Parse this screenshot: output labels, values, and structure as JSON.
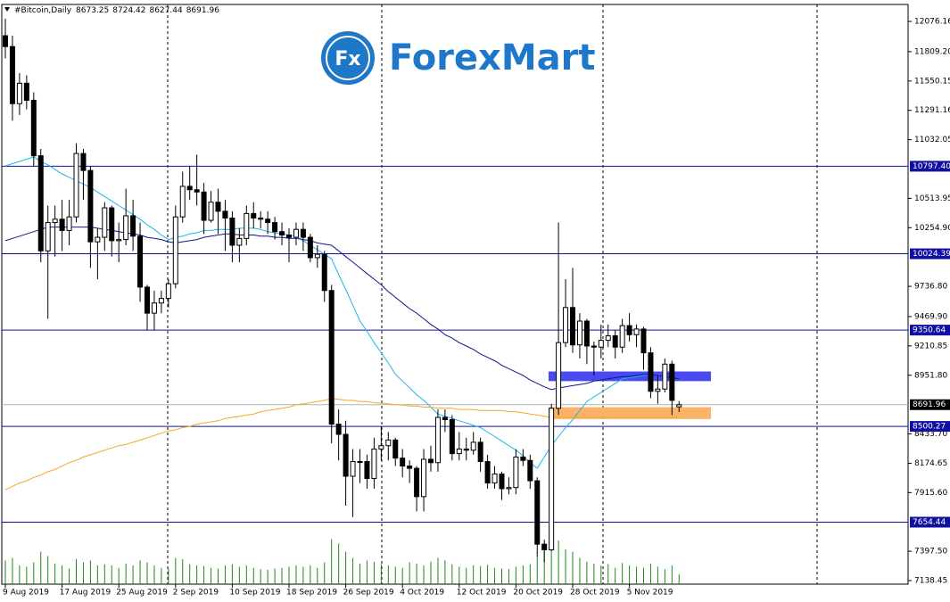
{
  "chart_data": {
    "type": "candlestick",
    "title": "#Bitcoin,Daily",
    "brand": {
      "icon": "Fx",
      "name": "ForexMart"
    },
    "categories": [
      "9 Aug 2019",
      null,
      null,
      null,
      null,
      null,
      null,
      null,
      "17 Aug 2019",
      null,
      null,
      null,
      null,
      null,
      null,
      null,
      "25 Aug 2019",
      null,
      null,
      null,
      null,
      null,
      null,
      null,
      "2 Sep 2019",
      null,
      null,
      null,
      null,
      null,
      null,
      null,
      "10 Sep 2019",
      null,
      null,
      null,
      null,
      null,
      null,
      null,
      "18 Sep 2019",
      null,
      null,
      null,
      null,
      null,
      null,
      null,
      "26 Sep 2019",
      null,
      null,
      null,
      null,
      null,
      null,
      null,
      "4 Oct 2019",
      null,
      null,
      null,
      null,
      null,
      null,
      null,
      "12 Oct 2019",
      null,
      null,
      null,
      null,
      null,
      null,
      null,
      "20 Oct 2019",
      null,
      null,
      null,
      null,
      null,
      null,
      null,
      "28 Oct 2019",
      null,
      null,
      null,
      null,
      null,
      null,
      null,
      "5 Nov 2019",
      null,
      null,
      null,
      null,
      null,
      null,
      null
    ],
    "open": [
      11950,
      11854,
      11350,
      11530,
      11380,
      10890,
      10050,
      10300,
      10330,
      10230,
      10350,
      10910,
      10760,
      10130,
      10170,
      10430,
      10140,
      10150,
      10360,
      10180,
      9730,
      9500,
      9590,
      9630,
      9760,
      10350,
      10620,
      10590,
      10570,
      10320,
      10480,
      10400,
      10340,
      10100,
      10160,
      10380,
      10340,
      10330,
      10300,
      10220,
      10190,
      10170,
      10240,
      10170,
      9990,
      10020,
      9700,
      8520,
      8430,
      8060,
      8190,
      8190,
      8040,
      8300,
      8330,
      8380,
      8220,
      8150,
      8130,
      7880,
      8210,
      8180,
      8580,
      8560,
      8260,
      8300,
      8290,
      8360,
      8190,
      8000,
      8080,
      7950,
      7960,
      8230,
      8200,
      8020,
      7460,
      7410,
      8660,
      9240,
      9550,
      9220,
      9430,
      9210,
      9200,
      9260,
      9300,
      9200,
      9390,
      9310,
      9360,
      9150,
      8810,
      8830,
      9050,
      8673.25
    ],
    "high": [
      12100,
      11950,
      11620,
      11600,
      11450,
      10950,
      10450,
      10450,
      10500,
      10500,
      11000,
      10950,
      10800,
      10250,
      10480,
      10450,
      10300,
      10600,
      10500,
      10300,
      9750,
      9700,
      9700,
      9800,
      10450,
      10750,
      10800,
      10900,
      10650,
      10580,
      10600,
      10500,
      10400,
      10250,
      10450,
      10480,
      10400,
      10400,
      10350,
      10300,
      10250,
      10300,
      10300,
      10200,
      10100,
      10050,
      9750,
      8650,
      8550,
      8300,
      8300,
      8250,
      8400,
      8500,
      8450,
      8400,
      8300,
      8200,
      8150,
      8300,
      8330,
      8650,
      8650,
      8600,
      8450,
      8400,
      8450,
      8400,
      8250,
      8150,
      8100,
      8050,
      8300,
      8300,
      8250,
      8050,
      7500,
      8700,
      10300,
      9800,
      9900,
      9500,
      9450,
      9250,
      9400,
      9400,
      9350,
      9450,
      9500,
      9400,
      9380,
      9200,
      8950,
      9100,
      9080,
      8724.42
    ],
    "low": [
      11750,
      11200,
      11250,
      11300,
      10800,
      9950,
      9450,
      10000,
      10050,
      10100,
      10300,
      10500,
      9900,
      9800,
      10050,
      10000,
      9950,
      10100,
      10050,
      9600,
      9350,
      9350,
      9500,
      9550,
      9720,
      10300,
      10500,
      10450,
      10200,
      10300,
      10200,
      10050,
      9950,
      9950,
      10100,
      10250,
      10250,
      10200,
      10150,
      10100,
      9950,
      10100,
      10050,
      9950,
      9900,
      9600,
      8350,
      8200,
      7800,
      7700,
      8000,
      7950,
      7950,
      8200,
      8200,
      8150,
      8050,
      8000,
      7750,
      7750,
      8100,
      8100,
      8450,
      8200,
      8200,
      8200,
      8250,
      8100,
      7950,
      7950,
      7850,
      7900,
      7900,
      8150,
      7950,
      7350,
      7300,
      7400,
      8600,
      9200,
      9150,
      9100,
      9050,
      8950,
      9100,
      9200,
      9100,
      9150,
      9250,
      9200,
      9000,
      8750,
      8700,
      8800,
      8600,
      8627.44
    ],
    "close": [
      11854,
      11350,
      11530,
      11380,
      10890,
      10050,
      10300,
      10330,
      10230,
      10350,
      10910,
      10760,
      10130,
      10170,
      10430,
      10140,
      10150,
      10360,
      10180,
      9730,
      9500,
      9590,
      9630,
      9760,
      10350,
      10620,
      10590,
      10570,
      10320,
      10480,
      10400,
      10340,
      10100,
      10160,
      10380,
      10340,
      10330,
      10300,
      10220,
      10190,
      10170,
      10240,
      10170,
      9990,
      10020,
      9700,
      8520,
      8430,
      8060,
      8190,
      8190,
      8040,
      8300,
      8330,
      8380,
      8220,
      8150,
      8130,
      7880,
      8210,
      8180,
      8580,
      8560,
      8260,
      8300,
      8290,
      8360,
      8190,
      8000,
      8080,
      7950,
      7960,
      8230,
      8200,
      8020,
      7460,
      7410,
      8660,
      9240,
      9550,
      9220,
      9430,
      9210,
      9200,
      9260,
      9300,
      9200,
      9390,
      9310,
      9360,
      9150,
      8810,
      8830,
      9050,
      8730,
      8691.96
    ],
    "up_color": "#ffffff",
    "down_color": "#000000",
    "outline_color": "#000000",
    "moving_averages": [
      {
        "color": "#1ab6e8",
        "values": [
          10800,
          10820,
          10840,
          10860,
          10880,
          10840,
          10810,
          10770,
          10730,
          10700,
          10670,
          10640,
          10610,
          10570,
          10530,
          10490,
          10450,
          10410,
          10370,
          10330,
          10280,
          10240,
          10190,
          10150,
          10170,
          10180,
          10200,
          10210,
          10230,
          10230,
          10240,
          10240,
          10240,
          10250,
          10250,
          10250,
          10240,
          10220,
          10210,
          10200,
          10190,
          10180,
          10140,
          10100,
          10060,
          10020,
          9980,
          9840,
          9710,
          9570,
          9430,
          9340,
          9240,
          9150,
          9060,
          8960,
          8900,
          8840,
          8780,
          8730,
          8670,
          8610,
          8590,
          8570,
          8550,
          8530,
          8510,
          8490,
          8450,
          8410,
          8370,
          8330,
          8290,
          8240,
          8180,
          8130,
          8230,
          8330,
          8410,
          8490,
          8560,
          8640,
          8720,
          8760,
          8800,
          8840,
          8880,
          8920,
          8930,
          8940,
          8950,
          8960,
          8950,
          8940,
          8930,
          8920
        ]
      },
      {
        "color": "#14148c",
        "values": [
          10140,
          10160,
          10180,
          10200,
          10220,
          10240,
          10260,
          10260,
          10260,
          10260,
          10260,
          10260,
          10260,
          10250,
          10240,
          10230,
          10220,
          10210,
          10200,
          10190,
          10170,
          10160,
          10150,
          10130,
          10120,
          10130,
          10140,
          10150,
          10170,
          10180,
          10190,
          10200,
          10200,
          10190,
          10190,
          10190,
          10180,
          10180,
          10170,
          10170,
          10160,
          10160,
          10150,
          10140,
          10120,
          10110,
          10100,
          10050,
          10000,
          9950,
          9900,
          9850,
          9800,
          9750,
          9690,
          9640,
          9590,
          9540,
          9500,
          9450,
          9400,
          9360,
          9310,
          9280,
          9240,
          9210,
          9180,
          9140,
          9110,
          9080,
          9040,
          9010,
          8980,
          8950,
          8910,
          8880,
          8850,
          8825,
          8840,
          8850,
          8860,
          8870,
          8880,
          8900,
          8910,
          8920,
          8930,
          8940,
          8940,
          8950,
          8960,
          8960,
          8950,
          8940,
          8930,
          8920
        ]
      },
      {
        "color": "#f5a623",
        "values": [
          7940,
          7970,
          8000,
          8020,
          8050,
          8070,
          8100,
          8120,
          8150,
          8180,
          8200,
          8230,
          8250,
          8270,
          8290,
          8310,
          8330,
          8340,
          8360,
          8380,
          8400,
          8420,
          8440,
          8460,
          8470,
          8490,
          8500,
          8520,
          8530,
          8540,
          8550,
          8570,
          8580,
          8590,
          8600,
          8610,
          8630,
          8640,
          8650,
          8660,
          8670,
          8690,
          8700,
          8710,
          8720,
          8730,
          8745,
          8740,
          8730,
          8730,
          8720,
          8720,
          8710,
          8705,
          8700,
          8690,
          8690,
          8680,
          8680,
          8670,
          8670,
          8660,
          8660,
          8660,
          8650,
          8650,
          8650,
          8640,
          8640,
          8640,
          8640,
          8630,
          8630,
          8620,
          8610,
          8600,
          8590,
          8580,
          8580,
          8580,
          8580,
          8580,
          8580,
          8580,
          8580,
          8580,
          8580,
          8580,
          8580,
          8580,
          8580,
          8580,
          8580,
          8580,
          8580,
          8580
        ]
      }
    ],
    "volume": {
      "color": "#1a8a1a",
      "lim": [
        0,
        1000
      ],
      "values": [
        380,
        420,
        300,
        280,
        350,
        520,
        450,
        330,
        300,
        250,
        400,
        350,
        380,
        300,
        320,
        300,
        260,
        330,
        300,
        380,
        350,
        300,
        260,
        250,
        420,
        400,
        320,
        300,
        290,
        260,
        250,
        300,
        320,
        280,
        300,
        260,
        240,
        230,
        250,
        260,
        280,
        300,
        280,
        300,
        260,
        350,
        720,
        650,
        520,
        420,
        330,
        380,
        360,
        320,
        300,
        280,
        260,
        350,
        330,
        300,
        360,
        420,
        380,
        320,
        280,
        260,
        300,
        290,
        310,
        260,
        250,
        240,
        280,
        300,
        320,
        450,
        520,
        780,
        700,
        560,
        520,
        420,
        360,
        330,
        300,
        320,
        260,
        340,
        300,
        280,
        260,
        330,
        280,
        240,
        300,
        160
      ]
    },
    "levels": [
      {
        "value": 10797.4,
        "label": "10797.40"
      },
      10024.39,
      9350.64,
      8500.27,
      7654.44
    ],
    "level_color": "#1010a0",
    "zones": [
      {
        "from": 8900,
        "to": 8985,
        "color": "#4a4af2"
      },
      {
        "from": 8565,
        "to": 8670,
        "color": "#fbb36a"
      }
    ],
    "ylim": [
      7107,
      12226
    ],
    "yticks": [
      12076.16,
      {
        "value": 11809.2,
        "label": "11809.20"
      },
      11550.15,
      11291.16,
      11032.05,
      10513.95,
      {
        "value": 10254.9,
        "label": "10254.90"
      },
      {
        "value": 9736.8,
        "label": "9736.80"
      },
      {
        "value": 9469.9,
        "label": "9469.90"
      },
      9210.85,
      {
        "value": 8951.8,
        "label": "8951.80"
      },
      {
        "value": 8433.7,
        "label": "8433.70"
      },
      8174.65,
      {
        "value": 7915.6,
        "label": "7915.60"
      },
      {
        "value": 7397.5,
        "label": "7397.50"
      },
      7138.45
    ]
  }
}
